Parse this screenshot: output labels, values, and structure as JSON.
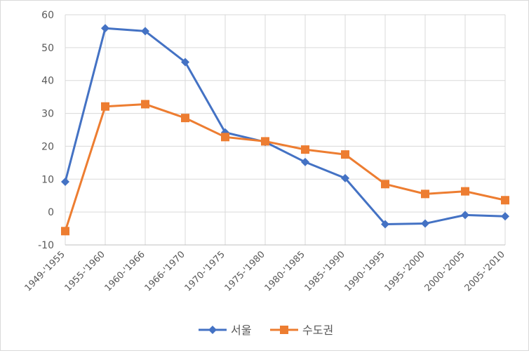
{
  "chart_data": {
    "type": "line",
    "title": "",
    "xlabel": "",
    "ylabel": "",
    "categories": [
      "1949-'1955",
      "1955-'1960",
      "1960-'1966",
      "1966-'1970",
      "1970-'1975",
      "1975-'1980",
      "1980-'1985",
      "1985-'1990",
      "1990-'1995",
      "1995-'2000",
      "2000-'2005",
      "2005-'2010"
    ],
    "ylim": [
      -10,
      60
    ],
    "yticks": [
      -10,
      0,
      10,
      20,
      30,
      40,
      50,
      60
    ],
    "grid": true,
    "legend": "bottom",
    "series": [
      {
        "name": "서울",
        "color": "#4472c4",
        "marker": "diamond",
        "values": [
          9.2,
          55.9,
          55.0,
          45.6,
          24.2,
          21.3,
          15.2,
          10.3,
          -3.7,
          -3.5,
          -0.9,
          -1.3
        ]
      },
      {
        "name": "수도권",
        "color": "#ed7d31",
        "marker": "square",
        "values": [
          -5.8,
          32.1,
          32.8,
          28.6,
          22.8,
          21.5,
          19.0,
          17.5,
          8.5,
          5.5,
          6.3,
          3.6
        ]
      }
    ]
  }
}
